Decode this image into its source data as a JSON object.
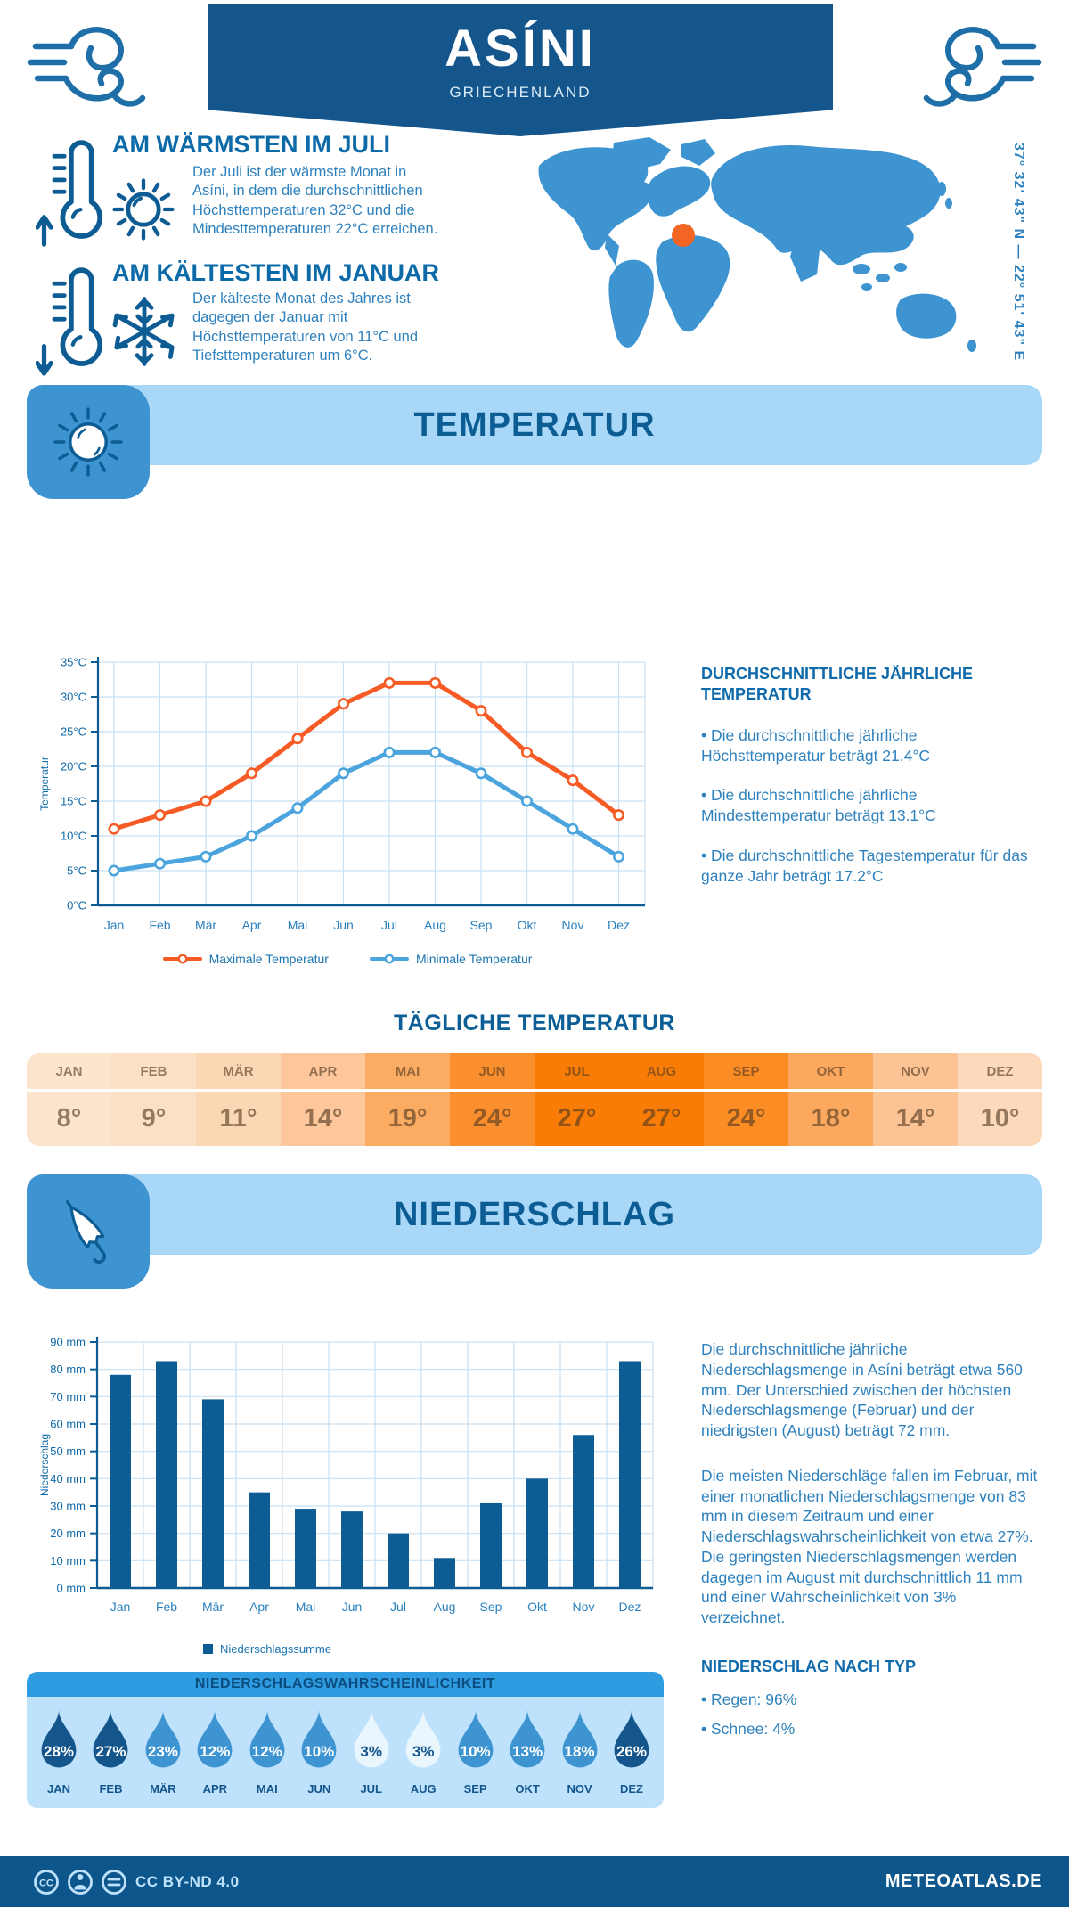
{
  "header": {
    "title": "ASÍNI",
    "subtitle": "GRIECHENLAND"
  },
  "location": {
    "coordinates": "37° 32' 43\" N — 22° 51' 43\" E",
    "marker_color": "#F26522",
    "map_color": "#3D94D1"
  },
  "highlights": {
    "warmest": {
      "heading": "AM WÄRMSTEN IM JULI",
      "text": "Der Juli ist der wärmste Monat in Asíni, in dem die durchschnittlichen Höchsttemperaturen 32°C und die Mindesttemperaturen 22°C erreichen."
    },
    "coldest": {
      "heading": "AM KÄLTESTEN IM JANUAR",
      "text": "Der kälteste Monat des Jahres ist dagegen der Januar mit Höchsttemperaturen von 11°C und Tiefsttemperaturen um 6°C."
    }
  },
  "temperature": {
    "banner_title": "TEMPERATUR",
    "stats_heading": "DURCHSCHNITTLICHE JÄHRLICHE TEMPERATUR",
    "stats": [
      "Die durchschnittliche jährliche Höchsttemperatur beträgt 21.4°C",
      "Die durchschnittliche jährliche Mindesttemperatur beträgt 13.1°C",
      "Die durchschnittliche Tagestemperatur für das ganze Jahr beträgt 17.2°C"
    ],
    "daily": {
      "title": "TÄGLICHE TEMPERATUR",
      "months": [
        "JAN",
        "FEB",
        "MÄR",
        "APR",
        "MAI",
        "JUN",
        "JUL",
        "AUG",
        "SEP",
        "OKT",
        "NOV",
        "DEZ"
      ],
      "values": [
        "8°",
        "9°",
        "11°",
        "14°",
        "19°",
        "24°",
        "27°",
        "27°",
        "24°",
        "18°",
        "14°",
        "10°"
      ],
      "cell_colors": [
        "#FCE5CF",
        "#FCE0C6",
        "#FCD7B4",
        "#FDC79B",
        "#FCAB63",
        "#FB8F2D",
        "#F97C06",
        "#F97C06",
        "#FB8D24",
        "#FCA95F",
        "#FCC394",
        "#FCD9BB"
      ]
    }
  },
  "precipitation": {
    "banner_title": "NIEDERSCHLAG",
    "text1": "Die durchschnittliche jährliche Niederschlagsmenge in Asíni beträgt etwa 560 mm. Der Unterschied zwischen der höchsten Niederschlagsmenge (Februar) und der niedrigsten (August) beträgt 72 mm.",
    "text2": "Die meisten Niederschläge fallen im Februar, mit einer monatlichen Niederschlagsmenge von 83 mm in diesem Zeitraum und einer Niederschlagswahrscheinlichkeit von etwa 27%. Die geringsten Niederschlagsmengen werden dagegen im August mit durchschnittlich 11 mm und einer Wahrscheinlichkeit von 3% verzeichnet.",
    "type_heading": "NIEDERSCHLAG NACH TYP",
    "types": [
      "Regen: 96%",
      "Schnee: 4%"
    ],
    "probability": {
      "title": "NIEDERSCHLAGSWAHRSCHEINLICHKEIT",
      "months": [
        "JAN",
        "FEB",
        "MÄR",
        "APR",
        "MAI",
        "JUN",
        "JUL",
        "AUG",
        "SEP",
        "OKT",
        "NOV",
        "DEZ"
      ],
      "values": [
        "28%",
        "27%",
        "23%",
        "12%",
        "12%",
        "10%",
        "3%",
        "3%",
        "10%",
        "13%",
        "18%",
        "26%"
      ],
      "levels": [
        "dark",
        "dark",
        "mid",
        "mid",
        "mid",
        "mid",
        "light",
        "light",
        "mid",
        "mid",
        "mid",
        "dark"
      ],
      "level_colors": {
        "dark": "#14568C",
        "mid": "#3D94D1",
        "light": "#EAF6FE"
      },
      "light_text_color": "#14568C"
    }
  },
  "chart_data": [
    {
      "type": "line",
      "title": "Temperatur",
      "categories": [
        "Jan",
        "Feb",
        "Mär",
        "Apr",
        "Mai",
        "Jun",
        "Jul",
        "Aug",
        "Sep",
        "Okt",
        "Nov",
        "Dez"
      ],
      "series": [
        {
          "name": "Maximale Temperatur",
          "color": "#F75B25",
          "values": [
            11,
            13,
            15,
            19,
            24,
            29,
            32,
            32,
            28,
            22,
            18,
            13
          ]
        },
        {
          "name": "Minimale Temperatur",
          "color": "#4BA4DE",
          "values": [
            5,
            6,
            7,
            10,
            14,
            19,
            22,
            22,
            19,
            15,
            11,
            7
          ]
        }
      ],
      "xlabel": "",
      "ylabel": "Temperatur",
      "unit": "°C",
      "ylim": [
        0,
        35
      ],
      "ytick_step": 5,
      "grid": true,
      "legend_position": "bottom"
    },
    {
      "type": "bar",
      "title": "Niederschlag",
      "categories": [
        "Jan",
        "Feb",
        "Mär",
        "Apr",
        "Mai",
        "Jun",
        "Jul",
        "Aug",
        "Sep",
        "Okt",
        "Nov",
        "Dez"
      ],
      "values": [
        78,
        83,
        69,
        35,
        29,
        28,
        20,
        11,
        31,
        40,
        56,
        83
      ],
      "series_name": "Niederschlagssumme",
      "color": "#0D5D94",
      "xlabel": "",
      "ylabel": "Niederschlag",
      "unit": " mm",
      "ylim": [
        0,
        90
      ],
      "ytick_step": 10,
      "grid": true,
      "legend_position": "bottom"
    }
  ],
  "footer": {
    "license": "CC BY-ND 4.0",
    "site": "METEOATLAS.DE"
  }
}
